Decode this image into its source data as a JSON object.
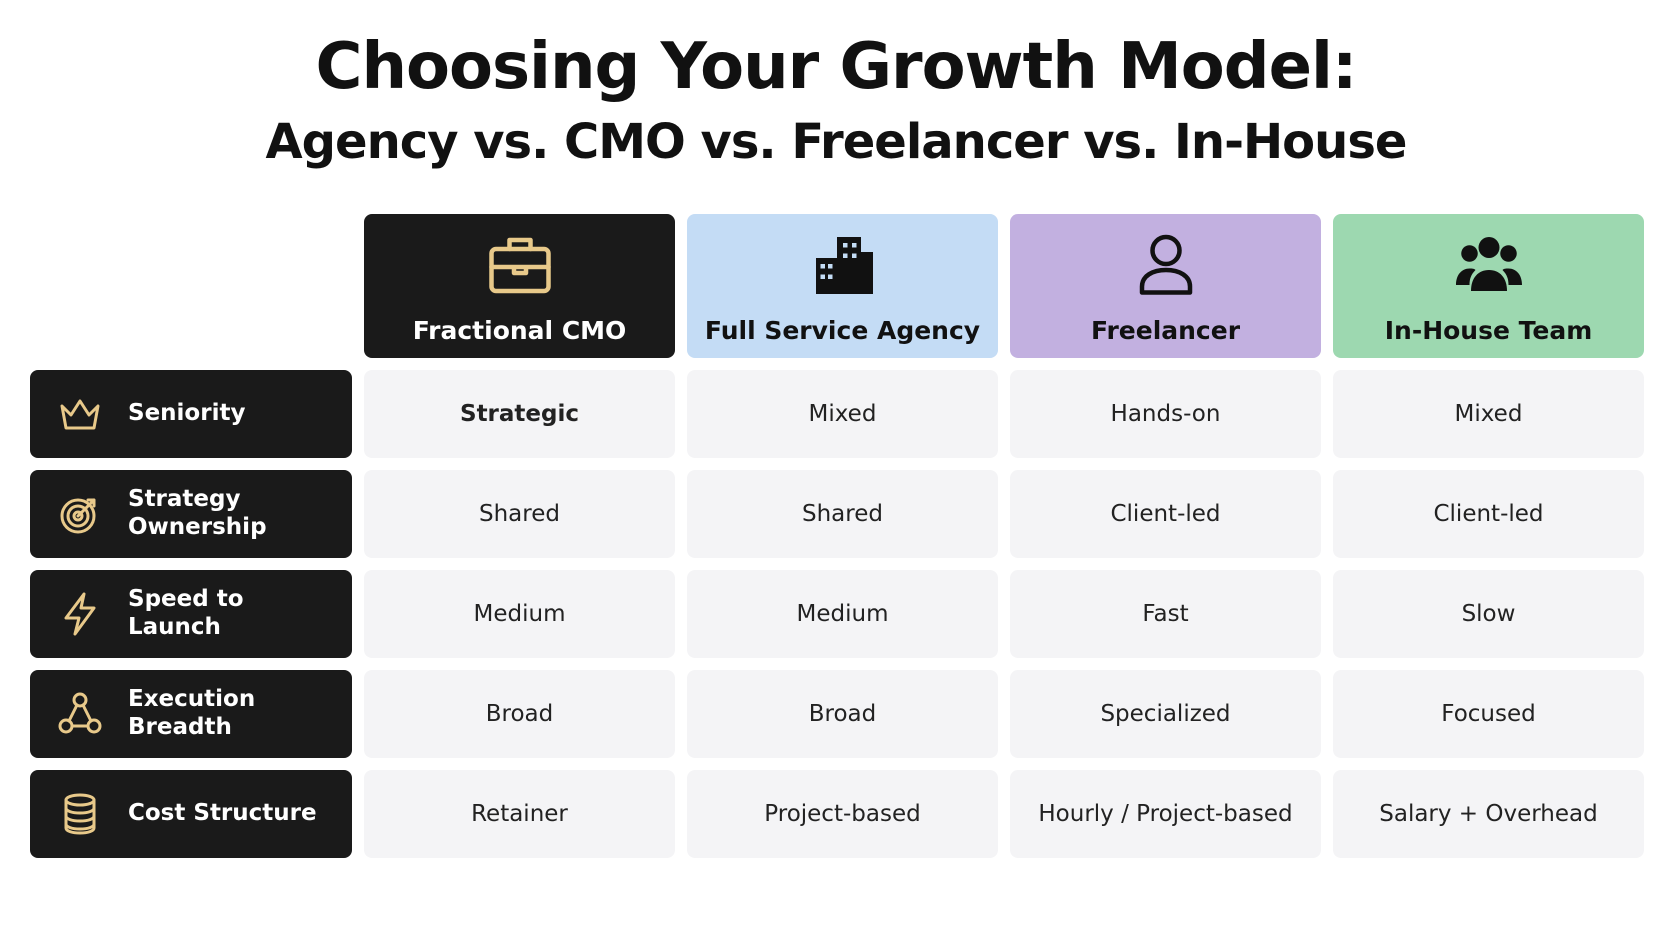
{
  "header": {
    "title": "Choosing Your Growth Model:",
    "subtitle": "Agency vs. CMO vs. Freelancer vs. In-House"
  },
  "table": {
    "columns": [
      "Fractional CMO",
      "Full Service Agency",
      "Freelancer",
      "In-House Team"
    ],
    "rows": [
      {
        "label": "Seniority",
        "cells": [
          "Strategic",
          "Mixed",
          "Hands-on",
          "Mixed"
        ]
      },
      {
        "label": "Strategy Ownership",
        "cells": [
          "Shared",
          "Shared",
          "Client-led",
          "Client-led"
        ]
      },
      {
        "label": "Speed to Launch",
        "cells": [
          "Medium",
          "Medium",
          "Fast",
          "Slow"
        ]
      },
      {
        "label": "Execution Breadth",
        "cells": [
          "Broad",
          "Broad",
          "Specialized",
          "Focused"
        ]
      },
      {
        "label": "Cost Structure",
        "cells": [
          "Retainer",
          "Project-based",
          "Hourly / Project-based",
          "Salary + Overhead"
        ]
      }
    ]
  }
}
